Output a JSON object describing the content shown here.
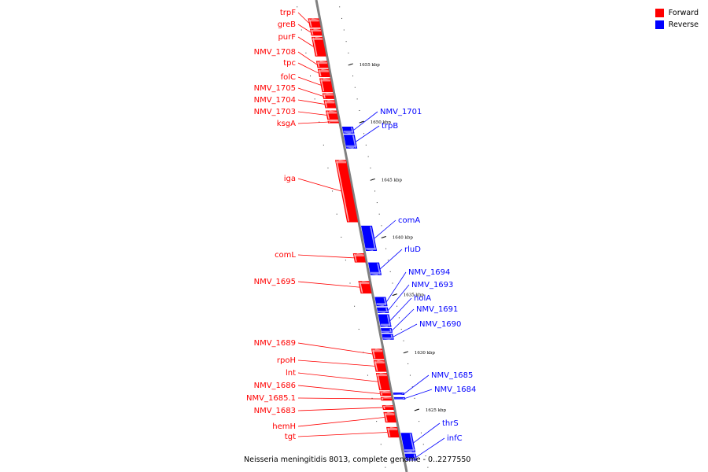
{
  "colors": {
    "forward": "#ff0000",
    "reverse": "#0000ff",
    "backbone": "#808080"
  },
  "legend": [
    {
      "label": "Forward",
      "color": "#ff0000"
    },
    {
      "label": "Reverse",
      "color": "#0000ff"
    }
  ],
  "caption": "Neisseria meningitidis 8013, complete genome - 0..2277550",
  "ticks": [
    {
      "kb": 1655,
      "label": "1655 kbp"
    },
    {
      "kb": 1650,
      "label": "1650 kbp"
    },
    {
      "kb": 1645,
      "label": "1645 kbp"
    },
    {
      "kb": 1640,
      "label": "1640 kbp"
    },
    {
      "kb": 1635,
      "label": "1635 kbp"
    },
    {
      "kb": 1630,
      "label": "1630 kbp"
    },
    {
      "kb": 1625,
      "label": "1625 kbp"
    }
  ],
  "genes": [
    {
      "name": "trpF",
      "strand": "forward",
      "start": 1659.0,
      "end": 1658.2
    },
    {
      "name": "greB",
      "strand": "forward",
      "start": 1658.1,
      "end": 1657.5
    },
    {
      "name": "purF",
      "strand": "forward",
      "start": 1657.4,
      "end": 1655.7
    },
    {
      "name": "NMV_1708",
      "strand": "forward",
      "start": 1655.3,
      "end": 1654.7
    },
    {
      "name": "tpc",
      "strand": "forward",
      "start": 1654.6,
      "end": 1653.9
    },
    {
      "name": "folC",
      "strand": "forward",
      "start": 1653.8,
      "end": 1652.6
    },
    {
      "name": "NMV_1705",
      "strand": "forward",
      "start": 1652.5,
      "end": 1652.0
    },
    {
      "name": "NMV_1704",
      "strand": "forward",
      "start": 1651.9,
      "end": 1651.2
    },
    {
      "name": "NMV_1703",
      "strand": "forward",
      "start": 1651.0,
      "end": 1650.2
    },
    {
      "name": "ksgA",
      "strand": "forward",
      "start": 1650.1,
      "end": 1649.9
    },
    {
      "name": "NMV_1701",
      "strand": "reverse",
      "start": 1649.6,
      "end": 1649.0
    },
    {
      "name": "trpB",
      "strand": "reverse",
      "start": 1648.9,
      "end": 1647.7
    },
    {
      "name": "iga",
      "strand": "forward",
      "start": 1646.7,
      "end": 1641.3
    },
    {
      "name": "comA",
      "strand": "reverse",
      "start": 1641.0,
      "end": 1638.8
    },
    {
      "name": "comL",
      "strand": "forward",
      "start": 1638.6,
      "end": 1637.8
    },
    {
      "name": "rluD",
      "strand": "reverse",
      "start": 1637.8,
      "end": 1636.7
    },
    {
      "name": "NMV_1695",
      "strand": "forward",
      "start": 1636.2,
      "end": 1635.1
    },
    {
      "name": "NMV_1694",
      "strand": "reverse",
      "start": 1634.8,
      "end": 1634.0
    },
    {
      "name": "NMV_1693",
      "strand": "reverse",
      "start": 1633.9,
      "end": 1633.4
    },
    {
      "name": "holA",
      "strand": "reverse",
      "start": 1633.3,
      "end": 1632.2
    },
    {
      "name": "NMV_1691",
      "strand": "reverse",
      "start": 1632.1,
      "end": 1631.7
    },
    {
      "name": "NMV_1690",
      "strand": "reverse",
      "start": 1631.6,
      "end": 1631.1
    },
    {
      "name": "NMV_1689",
      "strand": "forward",
      "start": 1630.3,
      "end": 1629.4
    },
    {
      "name": "rpoH",
      "strand": "forward",
      "start": 1629.3,
      "end": 1628.3
    },
    {
      "name": "lnt",
      "strand": "forward",
      "start": 1628.2,
      "end": 1626.7
    },
    {
      "name": "NMV_1686",
      "strand": "forward",
      "start": 1626.6,
      "end": 1626.2
    },
    {
      "name": "NMV_1685.1",
      "strand": "forward",
      "start": 1626.1,
      "end": 1625.8
    },
    {
      "name": "NMV_1685",
      "strand": "reverse",
      "start": 1626.5,
      "end": 1626.3
    },
    {
      "name": "NMV_1684",
      "strand": "reverse",
      "start": 1626.1,
      "end": 1625.9
    },
    {
      "name": "NMV_1683",
      "strand": "forward",
      "start": 1625.4,
      "end": 1625.0
    },
    {
      "name": "hemH",
      "strand": "forward",
      "start": 1624.8,
      "end": 1623.9
    },
    {
      "name": "tgt",
      "strand": "forward",
      "start": 1623.5,
      "end": 1622.6
    },
    {
      "name": "thrS",
      "strand": "reverse",
      "start": 1623.0,
      "end": 1621.3
    },
    {
      "name": "infC",
      "strand": "reverse",
      "start": 1621.2,
      "end": 1620.6
    }
  ]
}
